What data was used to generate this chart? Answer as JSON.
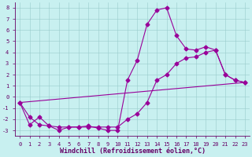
{
  "title": "",
  "xlabel": "Windchill (Refroidissement éolien,°C)",
  "ylabel": "",
  "bg_color": "#c8f0f0",
  "line_color": "#990099",
  "grid_color": "#99cccc",
  "axis_color": "#660066",
  "xlim": [
    -0.5,
    23.5
  ],
  "ylim": [
    -3.5,
    8.5
  ],
  "xticks": [
    0,
    1,
    2,
    3,
    4,
    5,
    6,
    7,
    8,
    9,
    10,
    11,
    12,
    13,
    14,
    15,
    16,
    17,
    18,
    19,
    20,
    21,
    22,
    23
  ],
  "yticks": [
    -3,
    -2,
    -1,
    0,
    1,
    2,
    3,
    4,
    5,
    6,
    7,
    8
  ],
  "line1_x": [
    0,
    1,
    2,
    3,
    4,
    5,
    6,
    7,
    8,
    9,
    10,
    11,
    12,
    13,
    14,
    15,
    16,
    17,
    18,
    19,
    20,
    21,
    22,
    23
  ],
  "line1_y": [
    -0.5,
    -2.5,
    -1.8,
    -2.6,
    -3.0,
    -2.7,
    -2.7,
    -2.6,
    -2.8,
    -3.0,
    -3.0,
    1.5,
    3.3,
    6.5,
    7.8,
    8.0,
    5.5,
    4.3,
    4.2,
    4.5,
    4.2,
    2.0,
    1.5,
    1.3
  ],
  "line2_x": [
    0,
    1,
    2,
    3,
    4,
    5,
    6,
    7,
    8,
    9,
    10,
    11,
    12,
    13,
    14,
    15,
    16,
    17,
    18,
    19,
    20,
    21,
    22,
    23
  ],
  "line2_y": [
    -0.5,
    -1.8,
    -2.5,
    -2.6,
    -2.7,
    -2.7,
    -2.7,
    -2.7,
    -2.7,
    -2.7,
    -2.7,
    -2.0,
    -1.5,
    -0.5,
    1.5,
    2.0,
    3.0,
    3.5,
    3.6,
    4.0,
    4.2,
    2.0,
    1.5,
    1.3
  ],
  "line3_x": [
    0,
    23
  ],
  "line3_y": [
    -0.5,
    1.3
  ],
  "marker": "D",
  "markersize": 2.5,
  "linewidth": 0.8,
  "tick_fontsize": 5.0,
  "xlabel_fontsize": 6.0
}
